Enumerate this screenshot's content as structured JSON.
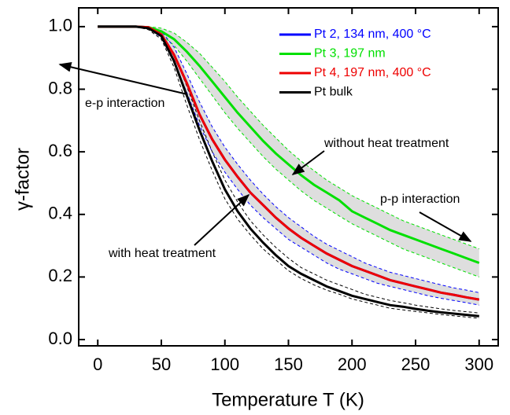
{
  "chart_data": {
    "type": "line",
    "x_label": "Temperature T (K)",
    "y_label": "γ-factor",
    "x": [
      0,
      10,
      20,
      30,
      40,
      50,
      60,
      70,
      80,
      90,
      100,
      110,
      120,
      130,
      140,
      150,
      160,
      170,
      180,
      190,
      200,
      210,
      220,
      230,
      240,
      250,
      260,
      270,
      280,
      290,
      300
    ],
    "series": [
      {
        "name": "Pt 2, 134 nm, 400 °C",
        "color": "#0000ff",
        "values": [
          1,
          1,
          1,
          1,
          0.998,
          0.975,
          0.91,
          0.82,
          0.72,
          0.64,
          0.575,
          0.52,
          0.47,
          0.43,
          0.39,
          0.355,
          0.325,
          0.3,
          0.275,
          0.255,
          0.235,
          0.22,
          0.205,
          0.19,
          0.18,
          0.17,
          0.16,
          0.15,
          0.143,
          0.135,
          0.128
        ]
      },
      {
        "name": "Pt 3, 197 nm",
        "color": "#00e000",
        "values": [
          1,
          1,
          1,
          1,
          0.998,
          0.985,
          0.96,
          0.92,
          0.875,
          0.825,
          0.775,
          0.725,
          0.68,
          0.635,
          0.595,
          0.56,
          0.525,
          0.495,
          0.47,
          0.445,
          0.41,
          0.39,
          0.37,
          0.35,
          0.335,
          0.32,
          0.305,
          0.29,
          0.275,
          0.26,
          0.245
        ]
      },
      {
        "name": "Pt 4, 197 nm, 400 °C",
        "color": "#ee0000",
        "values": [
          1,
          1,
          1,
          1,
          0.998,
          0.975,
          0.91,
          0.82,
          0.72,
          0.64,
          0.575,
          0.52,
          0.47,
          0.43,
          0.39,
          0.355,
          0.325,
          0.3,
          0.275,
          0.255,
          0.235,
          0.22,
          0.205,
          0.19,
          0.18,
          0.17,
          0.16,
          0.15,
          0.143,
          0.135,
          0.128
        ]
      },
      {
        "name": "Pt bulk",
        "color": "#000000",
        "values": [
          1,
          1,
          1,
          1,
          0.995,
          0.97,
          0.89,
          0.78,
          0.67,
          0.57,
          0.48,
          0.41,
          0.355,
          0.31,
          0.27,
          0.235,
          0.21,
          0.19,
          0.17,
          0.155,
          0.14,
          0.13,
          0.12,
          0.11,
          0.105,
          0.098,
          0.092,
          0.087,
          0.083,
          0.079,
          0.075
        ]
      }
    ],
    "bands": [
      {
        "color": "#00e000",
        "fill": "#dedede",
        "upper": [
          1,
          1,
          1,
          1,
          1,
          0.995,
          0.98,
          0.95,
          0.915,
          0.87,
          0.825,
          0.775,
          0.73,
          0.685,
          0.645,
          0.605,
          0.57,
          0.54,
          0.51,
          0.485,
          0.46,
          0.44,
          0.42,
          0.4,
          0.38,
          0.365,
          0.35,
          0.335,
          0.32,
          0.305,
          0.29
        ],
        "lower": [
          1,
          1,
          1,
          1,
          0.995,
          0.975,
          0.94,
          0.89,
          0.835,
          0.78,
          0.725,
          0.675,
          0.63,
          0.585,
          0.545,
          0.51,
          0.475,
          0.445,
          0.42,
          0.395,
          0.37,
          0.35,
          0.33,
          0.31,
          0.29,
          0.275,
          0.26,
          0.245,
          0.23,
          0.215,
          0.2
        ]
      },
      {
        "color": "#0000ff",
        "fill": "#dedede",
        "upper": [
          1,
          1,
          1,
          1,
          1,
          0.985,
          0.935,
          0.85,
          0.76,
          0.68,
          0.615,
          0.56,
          0.51,
          0.465,
          0.425,
          0.39,
          0.36,
          0.33,
          0.305,
          0.285,
          0.265,
          0.245,
          0.23,
          0.215,
          0.205,
          0.195,
          0.185,
          0.175,
          0.165,
          0.158,
          0.15
        ],
        "lower": [
          1,
          1,
          1,
          1,
          0.995,
          0.965,
          0.885,
          0.79,
          0.685,
          0.6,
          0.535,
          0.48,
          0.43,
          0.39,
          0.355,
          0.32,
          0.295,
          0.27,
          0.245,
          0.225,
          0.21,
          0.195,
          0.18,
          0.17,
          0.16,
          0.15,
          0.14,
          0.132,
          0.125,
          0.118,
          0.11
        ]
      },
      {
        "color": "#000000",
        "upper": [
          1,
          1,
          1,
          1,
          1,
          0.98,
          0.91,
          0.81,
          0.7,
          0.6,
          0.51,
          0.44,
          0.38,
          0.335,
          0.295,
          0.26,
          0.23,
          0.21,
          0.19,
          0.175,
          0.16,
          0.145,
          0.135,
          0.125,
          0.118,
          0.11,
          0.104,
          0.098,
          0.093,
          0.089,
          0.085
        ],
        "lower": [
          1,
          1,
          1,
          1,
          0.99,
          0.96,
          0.87,
          0.75,
          0.64,
          0.54,
          0.45,
          0.385,
          0.335,
          0.29,
          0.255,
          0.22,
          0.195,
          0.175,
          0.158,
          0.145,
          0.13,
          0.12,
          0.11,
          0.1,
          0.095,
          0.09,
          0.085,
          0.08,
          0.076,
          0.072,
          0.068
        ]
      }
    ],
    "annotations": [
      "e-p interaction",
      "without heat treatment",
      "p-p interaction",
      "with heat treatment"
    ],
    "xlim": [
      -15,
      315
    ],
    "ylim": [
      -0.02,
      1.06
    ],
    "xticks": [
      0,
      50,
      100,
      150,
      200,
      250,
      300
    ],
    "yticks": [
      {
        "value": 0,
        "label": "0.0"
      },
      {
        "value": 0.2,
        "label": "0.2"
      },
      {
        "value": 0.4,
        "label": "0.4"
      },
      {
        "value": 0.6,
        "label": "0.6"
      },
      {
        "value": 0.8,
        "label": "0.8"
      },
      {
        "value": 1,
        "label": "1.0"
      }
    ],
    "legend": "upper right"
  }
}
